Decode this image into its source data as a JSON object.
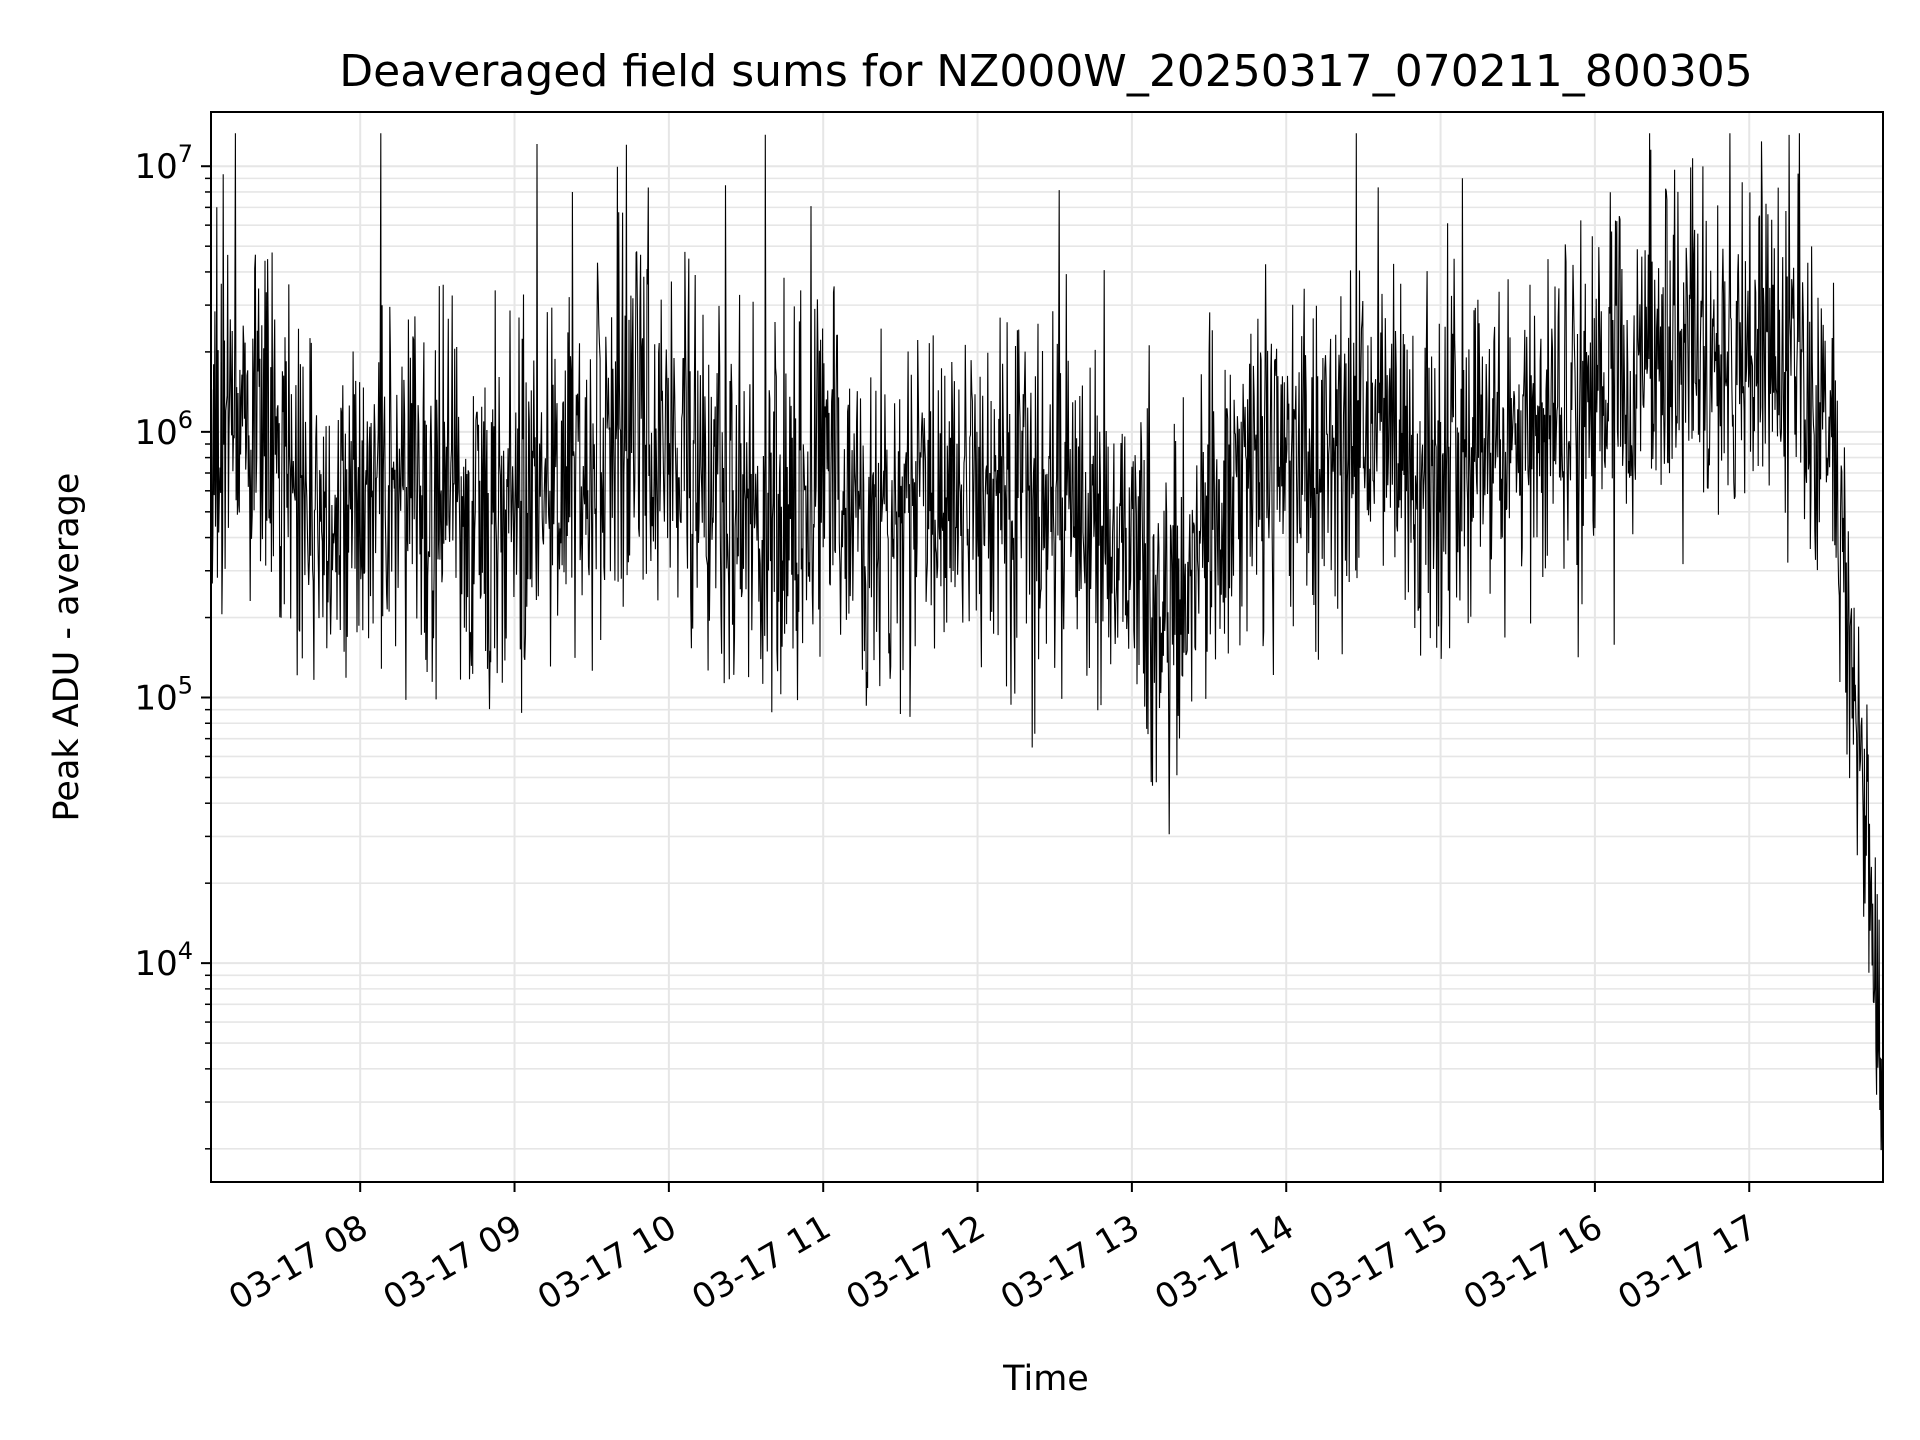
{
  "chart_data": {
    "type": "line",
    "title": "Deaveraged field sums for NZ000W_20250317_070211_800305",
    "xlabel": "Time",
    "ylabel": "Peak ADU - average",
    "yscale": "log",
    "ylim": [
      1500,
      16000000
    ],
    "xlim": [
      "03-17 07:02",
      "03-17 17:52"
    ],
    "grid": true,
    "line_color": "#000000",
    "grid_color": "#e6e6e6",
    "x_ticks": [
      "03-17 08",
      "03-17 09",
      "03-17 10",
      "03-17 11",
      "03-17 12",
      "03-17 13",
      "03-17 14",
      "03-17 15",
      "03-17 16",
      "03-17 17"
    ],
    "y_ticks": [
      {
        "base": "10",
        "exp": "4",
        "value": 10000
      },
      {
        "base": "10",
        "exp": "5",
        "value": 100000
      },
      {
        "base": "10",
        "exp": "6",
        "value": 1000000
      },
      {
        "base": "10",
        "exp": "7",
        "value": 10000000
      }
    ],
    "series": [
      {
        "x": [
          "03-17 07:02",
          "03-17 07:15",
          "03-17 07:30",
          "03-17 07:45",
          "03-17 08:00",
          "03-17 08:15",
          "03-17 08:30",
          "03-17 08:45",
          "03-17 09:00",
          "03-17 09:15",
          "03-17 09:30",
          "03-17 09:45",
          "03-17 10:00",
          "03-17 10:15",
          "03-17 10:30",
          "03-17 10:45",
          "03-17 11:00",
          "03-17 11:15",
          "03-17 11:30",
          "03-17 11:45",
          "03-17 12:00",
          "03-17 12:15",
          "03-17 12:30",
          "03-17 12:45",
          "03-17 13:00",
          "03-17 13:15",
          "03-17 13:30",
          "03-17 13:45",
          "03-17 14:00",
          "03-17 14:15",
          "03-17 14:30",
          "03-17 14:45",
          "03-17 15:00",
          "03-17 15:15",
          "03-17 15:30",
          "03-17 15:45",
          "03-17 16:00",
          "03-17 16:15",
          "03-17 16:30",
          "03-17 16:45",
          "03-17 17:00",
          "03-17 17:15",
          "03-17 17:30",
          "03-17 17:38",
          "03-17 17:42",
          "03-17 17:46",
          "03-17 17:49",
          "03-17 17:52"
        ],
        "values": [
          900000,
          1300000,
          800000,
          400000,
          500000,
          700000,
          600000,
          450000,
          500000,
          650000,
          850000,
          1000000,
          800000,
          650000,
          550000,
          500000,
          600000,
          450000,
          500000,
          550000,
          600000,
          550000,
          500000,
          450000,
          400000,
          200000,
          500000,
          650000,
          700000,
          750000,
          750000,
          750000,
          800000,
          900000,
          1000000,
          1200000,
          1500000,
          1800000,
          2200000,
          2000000,
          2000000,
          1800000,
          1200000,
          400000,
          80000,
          25000,
          10000,
          2200
        ]
      }
    ]
  }
}
